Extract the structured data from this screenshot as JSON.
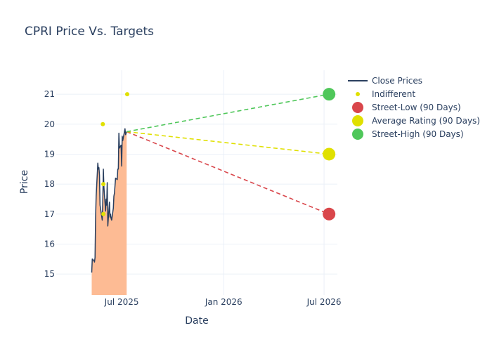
{
  "chart_data": {
    "type": "line",
    "title": "CPRI Price Vs. Targets",
    "xlabel": "Date",
    "ylabel": "Price",
    "xlim": [
      "2025-03-05",
      "2026-07-25"
    ],
    "ylim": [
      14.3,
      21.8
    ],
    "x_ticks": [
      {
        "date": "2025-07-01",
        "label": "Jul 2025"
      },
      {
        "date": "2026-01-01",
        "label": "Jan 2026"
      },
      {
        "date": "2026-07-01",
        "label": "Jul 2026"
      }
    ],
    "y_ticks": [
      15,
      16,
      17,
      18,
      19,
      20,
      21
    ],
    "grid": true,
    "legend_position": "top-right",
    "colors": {
      "close": "#2a3f5f",
      "fill": "#fdbb94",
      "indifferent": "#e0e000",
      "low": "#d9464b",
      "avg": "#e0e000",
      "high": "#4fc75a",
      "grid": "#ebf0f8",
      "text": "#2a3f5f"
    },
    "legend": [
      {
        "key": "close",
        "label": "Close Prices",
        "kind": "line"
      },
      {
        "key": "indifferent",
        "label": "Indifferent",
        "kind": "small-dot"
      },
      {
        "key": "low",
        "label": "Street-Low (90 Days)",
        "kind": "big-dot"
      },
      {
        "key": "avg",
        "label": "Average Rating (90 Days)",
        "kind": "big-dot"
      },
      {
        "key": "high",
        "label": "Street-High (90 Days)",
        "kind": "big-dot"
      }
    ],
    "series": [
      {
        "name": "Close Prices",
        "key": "close",
        "points": [
          [
            "2025-05-08",
            15.05
          ],
          [
            "2025-05-09",
            15.5
          ],
          [
            "2025-05-12",
            15.45
          ],
          [
            "2025-05-13",
            15.4
          ],
          [
            "2025-05-14",
            15.55
          ],
          [
            "2025-05-15",
            16.9
          ],
          [
            "2025-05-16",
            17.6
          ],
          [
            "2025-05-19",
            18.7
          ],
          [
            "2025-05-20",
            18.5
          ],
          [
            "2025-05-21",
            18.55
          ],
          [
            "2025-05-22",
            18.3
          ],
          [
            "2025-05-23",
            17.3
          ],
          [
            "2025-05-27",
            16.8
          ],
          [
            "2025-05-28",
            17.5
          ],
          [
            "2025-05-29",
            18.5
          ],
          [
            "2025-05-30",
            17.9
          ],
          [
            "2025-06-02",
            17.1
          ],
          [
            "2025-06-03",
            17.5
          ],
          [
            "2025-06-04",
            17.3
          ],
          [
            "2025-06-05",
            18.05
          ],
          [
            "2025-06-06",
            16.6
          ],
          [
            "2025-06-09",
            17.4
          ],
          [
            "2025-06-10",
            16.9
          ],
          [
            "2025-06-11",
            17.0
          ],
          [
            "2025-06-12",
            16.85
          ],
          [
            "2025-06-13",
            16.8
          ],
          [
            "2025-06-16",
            17.2
          ],
          [
            "2025-06-17",
            17.6
          ],
          [
            "2025-06-18",
            17.7
          ],
          [
            "2025-06-20",
            18.2
          ],
          [
            "2025-06-23",
            18.15
          ],
          [
            "2025-06-24",
            18.5
          ],
          [
            "2025-06-25",
            18.5
          ],
          [
            "2025-06-26",
            19.7
          ],
          [
            "2025-06-27",
            19.2
          ],
          [
            "2025-06-30",
            19.3
          ],
          [
            "2025-07-01",
            18.6
          ],
          [
            "2025-07-02",
            19.6
          ],
          [
            "2025-07-03",
            19.45
          ],
          [
            "2025-07-07",
            19.85
          ],
          [
            "2025-07-08",
            19.65
          ],
          [
            "2025-07-09",
            19.7
          ],
          [
            "2025-07-10",
            19.75
          ]
        ]
      },
      {
        "name": "Indifferent",
        "key": "indifferent",
        "points": [
          [
            "2025-05-28",
            20.0
          ],
          [
            "2025-05-29",
            18.0
          ],
          [
            "2025-05-29",
            17.0
          ],
          [
            "2025-07-11",
            21.0
          ]
        ]
      },
      {
        "name": "Street-Low (90 Days)",
        "key": "low",
        "points": [
          [
            "2025-07-10",
            19.75
          ],
          [
            "2026-07-10",
            17.0
          ]
        ]
      },
      {
        "name": "Average Rating (90 Days)",
        "key": "avg",
        "points": [
          [
            "2025-07-10",
            19.75
          ],
          [
            "2026-07-10",
            19.0
          ]
        ]
      },
      {
        "name": "Street-High (90 Days)",
        "key": "high",
        "points": [
          [
            "2025-07-10",
            19.75
          ],
          [
            "2026-07-10",
            21.0
          ]
        ]
      }
    ]
  }
}
